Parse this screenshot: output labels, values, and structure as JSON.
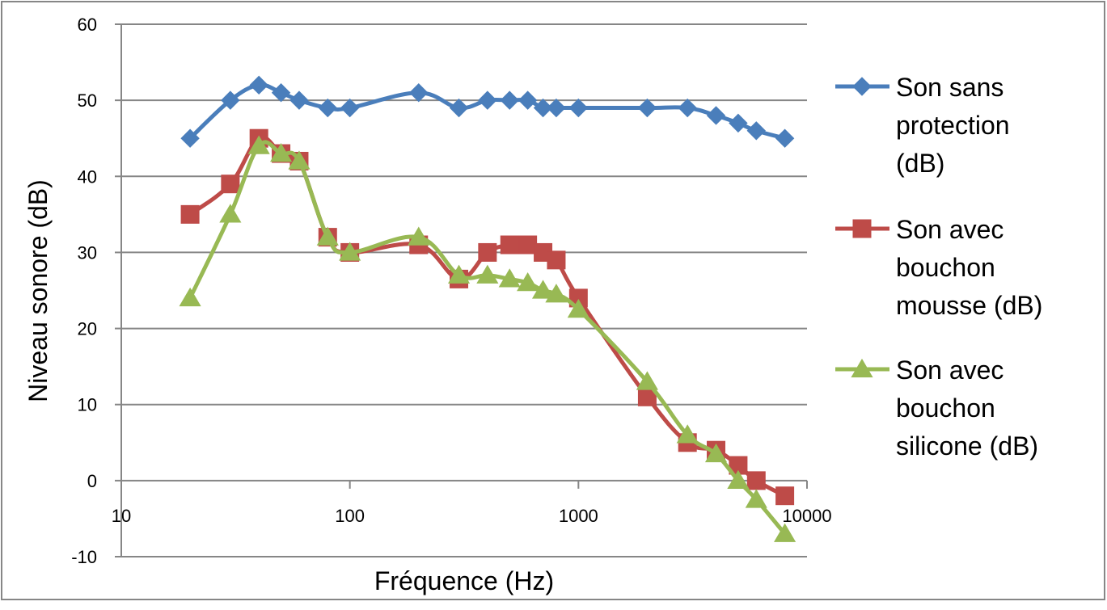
{
  "chart_data": {
    "type": "scatter",
    "x_scale": "log",
    "title": "",
    "xlabel": "Fréquence (Hz)",
    "ylabel": "Niveau sonore (dB)",
    "xlim": [
      10,
      10000
    ],
    "ylim": [
      -10,
      60
    ],
    "x_ticks": [
      10,
      100,
      1000,
      10000
    ],
    "x_tick_labels": [
      "10",
      "100",
      "1000",
      "10000"
    ],
    "y_ticks": [
      -10,
      0,
      10,
      20,
      30,
      40,
      50,
      60
    ],
    "y_tick_labels": [
      "-10",
      "0",
      "10",
      "20",
      "30",
      "40",
      "50",
      "60"
    ],
    "grid": "horizontal",
    "legend_position": "right",
    "series": [
      {
        "name": "Son sans protection (dB)",
        "legend_lines": [
          "Son sans",
          "protection",
          "(dB)"
        ],
        "color": "#4a7ebb",
        "marker": "diamond",
        "x": [
          20,
          30,
          40,
          50,
          60,
          80,
          100,
          200,
          300,
          400,
          500,
          600,
          700,
          800,
          1000,
          2000,
          3000,
          4000,
          5000,
          6000,
          8000
        ],
        "y": [
          45,
          50,
          52,
          51,
          50,
          49,
          49,
          51,
          49,
          50,
          50,
          50,
          49,
          49,
          49,
          49,
          49,
          48,
          47,
          46,
          45
        ]
      },
      {
        "name": "Son avec bouchon mousse (dB)",
        "legend_lines": [
          "Son avec",
          "bouchon",
          "mousse (dB)"
        ],
        "color": "#be4b48",
        "marker": "square",
        "x": [
          20,
          30,
          40,
          50,
          60,
          80,
          100,
          200,
          300,
          400,
          500,
          600,
          700,
          800,
          1000,
          2000,
          3000,
          4000,
          5000,
          6000,
          8000
        ],
        "y": [
          35,
          39,
          45,
          43,
          42,
          32,
          30,
          31,
          26.5,
          30,
          31,
          31,
          30,
          29,
          24,
          11,
          5,
          4,
          2,
          0,
          -2
        ]
      },
      {
        "name": "Son avec bouchon silicone (dB)",
        "legend_lines": [
          "Son avec",
          "bouchon",
          "silicone (dB)"
        ],
        "color": "#98b954",
        "marker": "triangle",
        "x": [
          20,
          30,
          40,
          50,
          60,
          80,
          100,
          200,
          300,
          400,
          500,
          600,
          700,
          800,
          1000,
          2000,
          3000,
          4000,
          5000,
          6000,
          8000
        ],
        "y": [
          24,
          35,
          44,
          43,
          42,
          32,
          30,
          32,
          27,
          27,
          26.5,
          26,
          25,
          24.5,
          22.5,
          13,
          6,
          3.5,
          0,
          -2.5,
          -7
        ]
      }
    ]
  }
}
